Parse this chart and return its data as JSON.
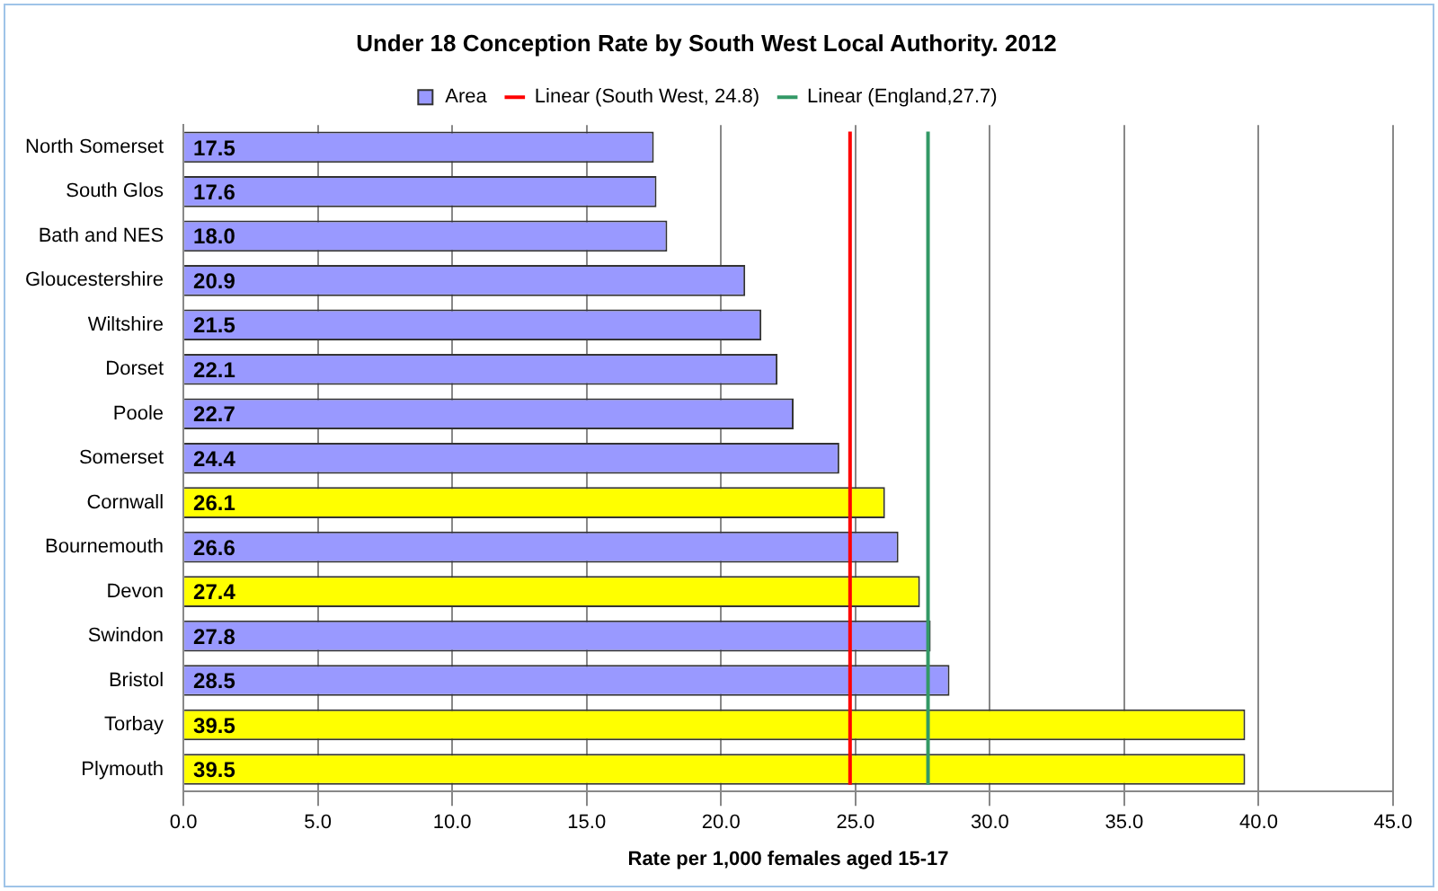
{
  "chart_data": {
    "type": "bar",
    "orientation": "horizontal",
    "title": "Under 18 Conception Rate by South West Local Authority. 2012",
    "xlabel": "Rate per 1,000 females aged 15-17",
    "categories": [
      "North Somerset",
      "South Glos",
      "Bath and NES",
      "Gloucestershire",
      "Wiltshire",
      "Dorset",
      "Poole",
      "Somerset",
      "Cornwall",
      "Bournemouth",
      "Devon",
      "Swindon",
      "Bristol",
      "Torbay",
      "Plymouth"
    ],
    "series": [
      {
        "name": "Area",
        "color": "#9999ff",
        "values": [
          17.5,
          17.6,
          18.0,
          20.9,
          21.5,
          22.1,
          22.7,
          24.4,
          26.1,
          26.6,
          27.4,
          27.8,
          28.5,
          39.5,
          39.5
        ],
        "colors": [
          "#9999ff",
          "#9999ff",
          "#9999ff",
          "#9999ff",
          "#9999ff",
          "#9999ff",
          "#9999ff",
          "#9999ff",
          "#ffff00",
          "#9999ff",
          "#ffff00",
          "#9999ff",
          "#9999ff",
          "#ffff00",
          "#ffff00"
        ]
      }
    ],
    "value_labels": [
      "17.5",
      "17.6",
      "18.0",
      "20.9",
      "21.5",
      "22.1",
      "22.7",
      "24.4",
      "26.1",
      "26.6",
      "27.4",
      "27.8",
      "28.5",
      "39.5",
      "39.5"
    ],
    "ref_lines": [
      {
        "axis": "x",
        "value": 24.8,
        "label": "Linear (South West, 24.8)",
        "color": "#ff0000"
      },
      {
        "axis": "x",
        "value": 27.7,
        "label": "Linear (England,27.7)",
        "color": "#339966"
      }
    ],
    "xlim": [
      0,
      45
    ],
    "xticks": [
      {
        "value": 0,
        "label": "0.0"
      },
      {
        "value": 5,
        "label": "5.0"
      },
      {
        "value": 10,
        "label": "10.0"
      },
      {
        "value": 15,
        "label": "15.0"
      },
      {
        "value": 20,
        "label": "20.0"
      },
      {
        "value": 25,
        "label": "25.0"
      },
      {
        "value": 30,
        "label": "30.0"
      },
      {
        "value": 35,
        "label": "35.0"
      },
      {
        "value": 40,
        "label": "40.0"
      },
      {
        "value": 45,
        "label": "45.0"
      }
    ],
    "grid": "x",
    "legend": "top"
  }
}
